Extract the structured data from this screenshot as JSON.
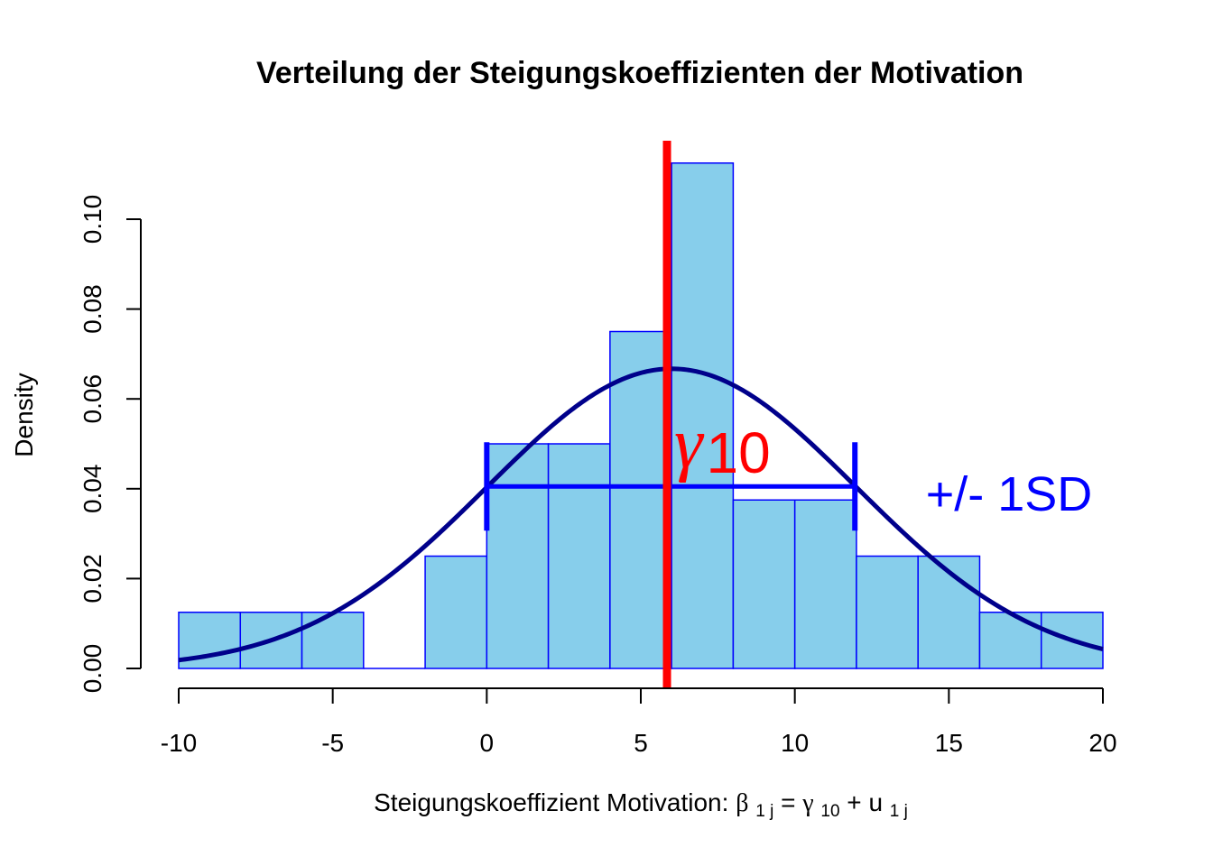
{
  "chart_data": {
    "type": "bar",
    "subtype": "histogram-with-density",
    "title": "Verteilung der Steigungskoeffizienten der Motivation",
    "xlabel": {
      "prefix": "Steigungskoeffizient Motivation: ",
      "beta": "β",
      "beta_sub": "1 j",
      "eq": " = ",
      "gamma": "γ",
      "gamma_sub": "10",
      "plus": " + ",
      "u": "u",
      "u_sub": "1 j"
    },
    "ylabel": "Density",
    "xlim": [
      -10,
      20
    ],
    "ylim": [
      0,
      0.1
    ],
    "x_ticks": [
      -10,
      -5,
      0,
      5,
      10,
      15,
      20
    ],
    "x_tick_labels": [
      "-10",
      "-5",
      "0",
      "5",
      "10",
      "15",
      "20"
    ],
    "y_ticks": [
      0,
      0.02,
      0.04,
      0.06,
      0.08,
      0.1
    ],
    "y_tick_labels": [
      "0.00",
      "0.02",
      "0.04",
      "0.06",
      "0.08",
      "0.10"
    ],
    "bins": [
      {
        "x0": -10,
        "x1": -8,
        "density": 0.0125
      },
      {
        "x0": -8,
        "x1": -6,
        "density": 0.0125
      },
      {
        "x0": -6,
        "x1": -4,
        "density": 0.0125
      },
      {
        "x0": -4,
        "x1": -2,
        "density": 0
      },
      {
        "x0": -2,
        "x1": 0,
        "density": 0.025
      },
      {
        "x0": 0,
        "x1": 2,
        "density": 0.05
      },
      {
        "x0": 2,
        "x1": 4,
        "density": 0.05
      },
      {
        "x0": 4,
        "x1": 6,
        "density": 0.075
      },
      {
        "x0": 6,
        "x1": 8,
        "density": 0.1125
      },
      {
        "x0": 8,
        "x1": 10,
        "density": 0.0375
      },
      {
        "x0": 10,
        "x1": 12,
        "density": 0.0375
      },
      {
        "x0": 12,
        "x1": 14,
        "density": 0.025
      },
      {
        "x0": 14,
        "x1": 16,
        "density": 0.025
      },
      {
        "x0": 16,
        "x1": 18,
        "density": 0.0125
      },
      {
        "x0": 18,
        "x1": 20,
        "density": 0.0125
      }
    ],
    "normal_curve": {
      "mean": 6,
      "sd": 5.98,
      "x_range": [
        -10,
        20
      ]
    },
    "mean_line": {
      "x": 5.85
    },
    "sd_interval": {
      "x0": 0,
      "x1": 11.95,
      "y": 0.0405
    },
    "annotations": {
      "gamma_symbol": "γ",
      "gamma_sub": "10",
      "sd_label": "+/- 1SD"
    },
    "colors": {
      "bar_fill": "#87CEEB",
      "bar_stroke": "#0000FF",
      "curve": "#00008B",
      "mean_line": "#FF0000",
      "sd_interval": "#0000FF"
    }
  }
}
